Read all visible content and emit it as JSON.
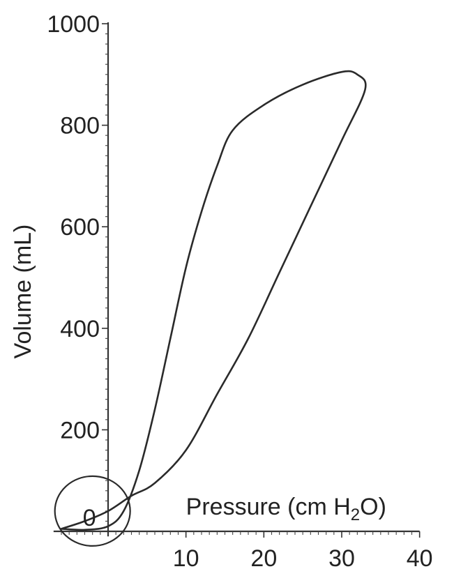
{
  "chart_data": {
    "type": "line",
    "title": "",
    "xlabel_main": "Pressure (cm H",
    "xlabel_sub": "2",
    "xlabel_end": "O)",
    "ylabel": "Volume (mL)",
    "xlim": [
      -7,
      40
    ],
    "ylim": [
      -10,
      1000
    ],
    "x_ticks": [
      "10",
      "20",
      "30",
      "40"
    ],
    "x_tick_values": [
      10,
      20,
      30,
      40
    ],
    "y_ticks": [
      "1000",
      "800",
      "600",
      "400",
      "200"
    ],
    "y_tick_values": [
      1000,
      800,
      600,
      400,
      200
    ],
    "origin_label": "0",
    "grid": false,
    "series": [
      {
        "points": [
          {
            "x": -6,
            "y": 5
          },
          {
            "x": -3,
            "y": 20
          },
          {
            "x": 0,
            "y": 40
          },
          {
            "x": 3,
            "y": 70
          },
          {
            "x": 6,
            "y": 95
          },
          {
            "x": 10,
            "y": 160
          },
          {
            "x": 14,
            "y": 270
          },
          {
            "x": 18,
            "y": 380
          },
          {
            "x": 22,
            "y": 510
          },
          {
            "x": 26,
            "y": 640
          },
          {
            "x": 30,
            "y": 770
          },
          {
            "x": 33,
            "y": 870
          },
          {
            "x": 32,
            "y": 900
          },
          {
            "x": 30,
            "y": 905
          },
          {
            "x": 25,
            "y": 880
          },
          {
            "x": 20,
            "y": 840
          },
          {
            "x": 16,
            "y": 790
          },
          {
            "x": 14,
            "y": 720
          },
          {
            "x": 12,
            "y": 630
          },
          {
            "x": 10,
            "y": 520
          },
          {
            "x": 8,
            "y": 380
          },
          {
            "x": 6,
            "y": 240
          },
          {
            "x": 4,
            "y": 120
          },
          {
            "x": 2,
            "y": 40
          },
          {
            "x": 0,
            "y": 10
          },
          {
            "x": -3,
            "y": 3
          },
          {
            "x": -6,
            "y": 5
          }
        ]
      }
    ]
  }
}
